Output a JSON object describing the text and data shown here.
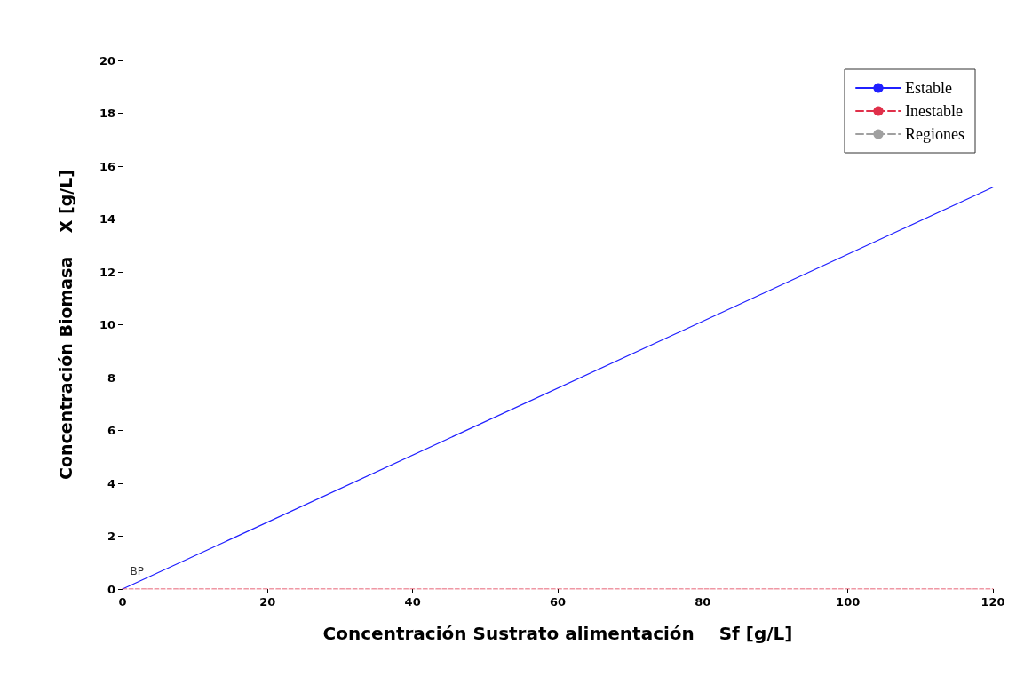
{
  "chart_data": {
    "type": "line",
    "xlabel": "Concentración Sustrato alimentación    Sf [g/L]",
    "ylabel": "Concentración Biomasa    X [g/L]",
    "x": [
      0,
      120
    ],
    "series": [
      {
        "name": "Estable",
        "color": "#2020ff",
        "values": [
          0,
          15.2
        ],
        "line_style": "solid"
      },
      {
        "name": "Inestable",
        "color": "#e0304a",
        "values": [
          0,
          0
        ],
        "line_style": "dashed"
      },
      {
        "name": "Regiones",
        "color": "#a0a0a0",
        "values": [
          null,
          null
        ],
        "line_style": "dashed"
      }
    ],
    "annotations": [
      {
        "text": "BP",
        "x": 2,
        "y": 0.3
      }
    ],
    "xlim": [
      0,
      120
    ],
    "xticks": [
      0,
      20,
      40,
      60,
      80,
      100,
      120
    ],
    "ylim": [
      0,
      20
    ],
    "yticks": [
      0,
      2,
      4,
      6,
      8,
      10,
      12,
      14,
      16,
      18,
      20
    ],
    "grid": false,
    "legend": "top right",
    "marker": "none"
  }
}
